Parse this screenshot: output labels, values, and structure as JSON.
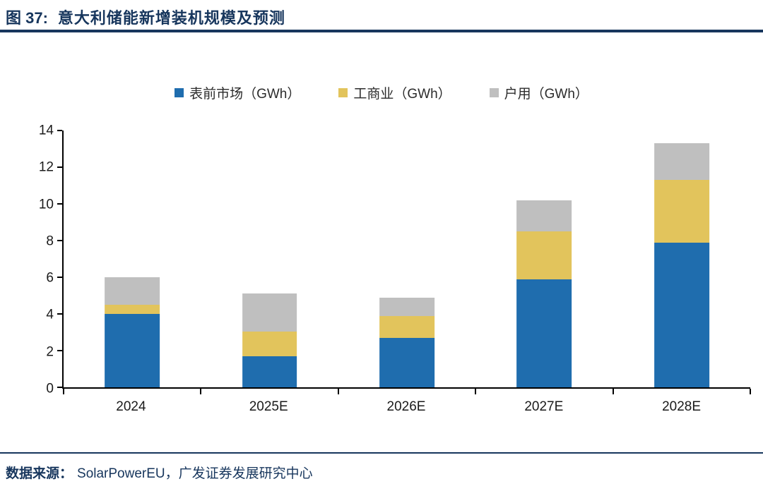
{
  "header": {
    "figure_label": "图 37:",
    "title": "意大利储能新增装机规模及预测"
  },
  "chart_data": {
    "type": "bar",
    "stacked": true,
    "title": "意大利储能新增装机规模及预测",
    "categories": [
      "2024",
      "2025E",
      "2026E",
      "2027E",
      "2028E"
    ],
    "series": [
      {
        "name": "表前市场（GWh）",
        "color": "#1F6DAE",
        "values": [
          4.0,
          1.7,
          2.7,
          5.9,
          7.9
        ]
      },
      {
        "name": "工商业（GWh）",
        "color": "#E2C45C",
        "values": [
          0.5,
          1.35,
          1.2,
          2.6,
          3.4
        ]
      },
      {
        "name": "户用（GWh）",
        "color": "#BFBFBF",
        "values": [
          1.5,
          2.05,
          1.0,
          1.7,
          2.0
        ]
      }
    ],
    "xlabel": "",
    "ylabel": "",
    "ylim": [
      0,
      14
    ],
    "ytick_step": 2,
    "grid": false,
    "legend_position": "top"
  },
  "footer": {
    "source_label": "数据来源：",
    "source_text": "SolarPowerEU，广发证券发展研究中心"
  },
  "colors": {
    "accent_navy": "#17365D",
    "series_blue": "#1F6DAE",
    "series_yellow": "#E2C45C",
    "series_gray": "#BFBFBF"
  }
}
